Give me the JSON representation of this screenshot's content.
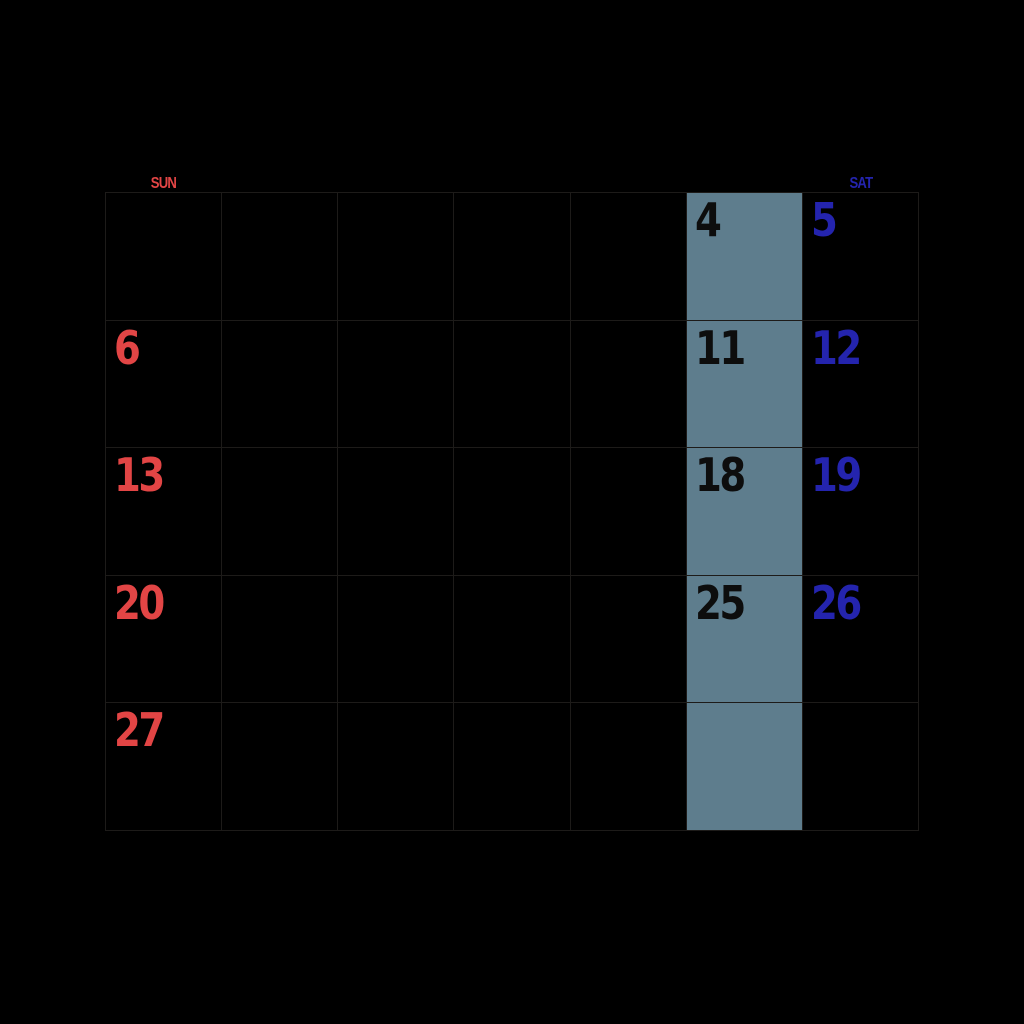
{
  "colors": {
    "background": "#000000",
    "grid_line": "#1d1b19",
    "sunday_red": "#e24545",
    "saturday_blue": "#2424ae",
    "friday_highlight": "#5e7d8d",
    "friday_number": "#0d0d0d"
  },
  "calendar": {
    "day_headers": [
      {
        "label": "SUN",
        "color": "#e24545"
      },
      {
        "label": "",
        "color": "#000000"
      },
      {
        "label": "",
        "color": "#000000"
      },
      {
        "label": "",
        "color": "#000000"
      },
      {
        "label": "",
        "color": "#000000"
      },
      {
        "label": "",
        "color": "#000000"
      },
      {
        "label": "SAT",
        "color": "#2424ae"
      }
    ],
    "highlighted_column_index": 5,
    "rows": [
      [
        "",
        "",
        "",
        "",
        "",
        "4",
        "5"
      ],
      [
        "6",
        "",
        "",
        "",
        "",
        "11",
        "12"
      ],
      [
        "13",
        "",
        "",
        "",
        "",
        "18",
        "19"
      ],
      [
        "20",
        "",
        "",
        "",
        "",
        "25",
        "26"
      ],
      [
        "27",
        "",
        "",
        "",
        "",
        "",
        ""
      ]
    ]
  }
}
